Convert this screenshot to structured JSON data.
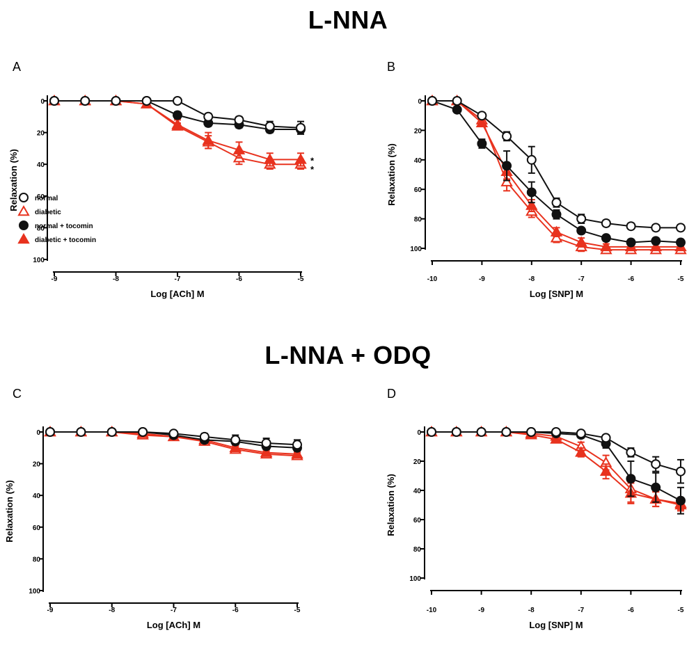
{
  "section_titles": {
    "top": "L-NNA",
    "bottom": "L-NNA + ODQ"
  },
  "colors": {
    "black": "#111111",
    "red": "#e8321e",
    "axis": "#000000"
  },
  "legend": [
    {
      "key": "normal",
      "label": "normal"
    },
    {
      "key": "diabetic",
      "label": "diabetic"
    },
    {
      "key": "normal_tocomin",
      "label": "normal + tocomin"
    },
    {
      "key": "diabetic_tocomin",
      "label": "diabetic + tocomin"
    }
  ],
  "chart_data": [
    {
      "panel": "A",
      "type": "line",
      "xlabel": "Log [ACh] M",
      "ylabel": "Relaxation (%)",
      "xlim": [
        -9,
        -5
      ],
      "ylim": [
        0,
        100
      ],
      "xticks": [
        -9,
        -8,
        -7,
        -6,
        -5
      ],
      "xtick_labels": [
        "-9",
        "-8",
        "-7",
        "-6",
        "-5"
      ],
      "yticks": [
        0,
        20,
        40,
        60,
        80,
        100
      ],
      "ytick_labels": [
        "0",
        "20",
        "40",
        "60",
        "80",
        "100"
      ],
      "x": [
        -9,
        -8.5,
        -8,
        -7.5,
        -7,
        -6.5,
        -6,
        -5.5,
        -5
      ],
      "series": [
        {
          "key": "normal",
          "values": [
            0,
            0,
            0,
            0,
            0,
            10,
            12,
            16,
            17
          ],
          "errors": [
            0,
            0,
            0,
            0,
            1,
            2,
            2,
            3,
            4
          ]
        },
        {
          "key": "normal_tocomin",
          "values": [
            0,
            0,
            0,
            0,
            9,
            14,
            15,
            18,
            18
          ],
          "errors": [
            0,
            0,
            0,
            0,
            2,
            2,
            2,
            2,
            2
          ]
        },
        {
          "key": "diabetic",
          "values": [
            0,
            0,
            0,
            2,
            16,
            26,
            36,
            40,
            40
          ],
          "errors": [
            0,
            0,
            0,
            1,
            2,
            4,
            4,
            3,
            3
          ]
        },
        {
          "key": "diabetic_tocomin",
          "values": [
            0,
            0,
            0,
            2,
            15,
            25,
            31,
            37,
            37
          ],
          "errors": [
            0,
            0,
            0,
            1,
            3,
            5,
            5,
            4,
            4
          ]
        }
      ],
      "annotations": [
        "*",
        "*"
      ]
    },
    {
      "panel": "B",
      "type": "line",
      "xlabel": "Log [SNP] M",
      "ylabel": "Relaxation (%)",
      "xlim": [
        -10,
        -5
      ],
      "ylim": [
        0,
        100
      ],
      "xticks": [
        -10,
        -9,
        -8,
        -7,
        -6,
        -5
      ],
      "xtick_labels": [
        "-10",
        "-9",
        "-8",
        "-7",
        "-6",
        "-5"
      ],
      "yticks": [
        0,
        20,
        40,
        60,
        80,
        100
      ],
      "ytick_labels": [
        "0",
        "20",
        "40",
        "60",
        "80",
        "100"
      ],
      "x": [
        -10,
        -9.5,
        -9,
        -8.5,
        -8,
        -7.5,
        -7,
        -6.5,
        -6,
        -5.5,
        -5
      ],
      "series": [
        {
          "key": "normal",
          "values": [
            0,
            0,
            10,
            24,
            40,
            69,
            80,
            83,
            85,
            86,
            86
          ],
          "errors": [
            0,
            0,
            2,
            3,
            9,
            3,
            3,
            2,
            2,
            2,
            2
          ]
        },
        {
          "key": "normal_tocomin",
          "values": [
            0,
            6,
            29,
            44,
            62,
            77,
            88,
            93,
            96,
            95,
            96
          ],
          "errors": [
            0,
            1,
            3,
            10,
            7,
            3,
            2,
            2,
            2,
            2,
            2
          ]
        },
        {
          "key": "diabetic",
          "values": [
            0,
            0,
            13,
            55,
            75,
            93,
            99,
            101,
            101,
            101,
            101
          ],
          "errors": [
            0,
            0,
            2,
            6,
            4,
            3,
            3,
            2,
            2,
            2,
            2
          ]
        },
        {
          "key": "diabetic_tocomin",
          "values": [
            0,
            0,
            15,
            48,
            71,
            89,
            96,
            99,
            99,
            99,
            99
          ],
          "errors": [
            0,
            0,
            2,
            5,
            4,
            3,
            3,
            2,
            2,
            2,
            2
          ]
        }
      ]
    },
    {
      "panel": "C",
      "type": "line",
      "xlabel": "Log [ACh] M",
      "ylabel": "Relaxation (%)",
      "xlim": [
        -9,
        -5
      ],
      "ylim": [
        0,
        100
      ],
      "xticks": [
        -9,
        -8,
        -7,
        -6,
        -5
      ],
      "xtick_labels": [
        "-9",
        "-8",
        "-7",
        "-6",
        "-5"
      ],
      "yticks": [
        0,
        20,
        40,
        60,
        80,
        100
      ],
      "ytick_labels": [
        "0",
        "20",
        "40",
        "60",
        "80",
        "100"
      ],
      "x": [
        -9,
        -8.5,
        -8,
        -7.5,
        -7,
        -6.5,
        -6,
        -5.5,
        -5
      ],
      "series": [
        {
          "key": "normal",
          "values": [
            0,
            0,
            0,
            0,
            1,
            3,
            5,
            7,
            8
          ],
          "errors": [
            0,
            0,
            0,
            0,
            1,
            2,
            3,
            3,
            3
          ]
        },
        {
          "key": "normal_tocomin",
          "values": [
            0,
            0,
            0,
            0,
            2,
            5,
            6,
            9,
            10
          ],
          "errors": [
            0,
            0,
            0,
            0,
            1,
            2,
            2,
            2,
            2
          ]
        },
        {
          "key": "diabetic",
          "values": [
            0,
            0,
            0,
            2,
            3,
            6,
            11,
            14,
            15
          ],
          "errors": [
            0,
            0,
            0,
            1,
            1,
            2,
            2,
            2,
            2
          ]
        },
        {
          "key": "diabetic_tocomin",
          "values": [
            0,
            0,
            0,
            1,
            3,
            5,
            10,
            13,
            14
          ],
          "errors": [
            0,
            0,
            0,
            1,
            1,
            2,
            2,
            2,
            2
          ]
        }
      ]
    },
    {
      "panel": "D",
      "type": "line",
      "xlabel": "Log [SNP] M",
      "ylabel": "Relaxation (%)",
      "xlim": [
        -10,
        -5
      ],
      "ylim": [
        0,
        100
      ],
      "xticks": [
        -10,
        -9,
        -8,
        -7,
        -6,
        -5
      ],
      "xtick_labels": [
        "-10",
        "-9",
        "-8",
        "-7",
        "-6",
        "-5"
      ],
      "yticks": [
        0,
        20,
        40,
        60,
        80,
        100
      ],
      "ytick_labels": [
        "0",
        "20",
        "40",
        "60",
        "80",
        "100"
      ],
      "x": [
        -10,
        -9.5,
        -9,
        -8.5,
        -8,
        -7.5,
        -7,
        -6.5,
        -6,
        -5.5,
        -5
      ],
      "series": [
        {
          "key": "normal",
          "values": [
            0,
            0,
            0,
            0,
            0,
            0,
            1,
            4,
            14,
            22,
            27
          ],
          "errors": [
            0,
            0,
            0,
            0,
            0,
            0,
            1,
            2,
            3,
            5,
            8
          ]
        },
        {
          "key": "normal_tocomin",
          "values": [
            0,
            0,
            0,
            0,
            0,
            1,
            2,
            8,
            32,
            38,
            47
          ],
          "errors": [
            0,
            0,
            0,
            0,
            0,
            1,
            2,
            3,
            12,
            10,
            9
          ]
        },
        {
          "key": "diabetic",
          "values": [
            0,
            0,
            0,
            0,
            1,
            3,
            10,
            21,
            39,
            46,
            49
          ],
          "errors": [
            0,
            0,
            0,
            0,
            1,
            2,
            3,
            5,
            9,
            5,
            4
          ]
        },
        {
          "key": "diabetic_tocomin",
          "values": [
            0,
            0,
            0,
            0,
            2,
            5,
            14,
            27,
            42,
            46,
            50
          ],
          "errors": [
            0,
            0,
            0,
            0,
            1,
            2,
            3,
            5,
            7,
            5,
            4
          ]
        }
      ]
    }
  ]
}
